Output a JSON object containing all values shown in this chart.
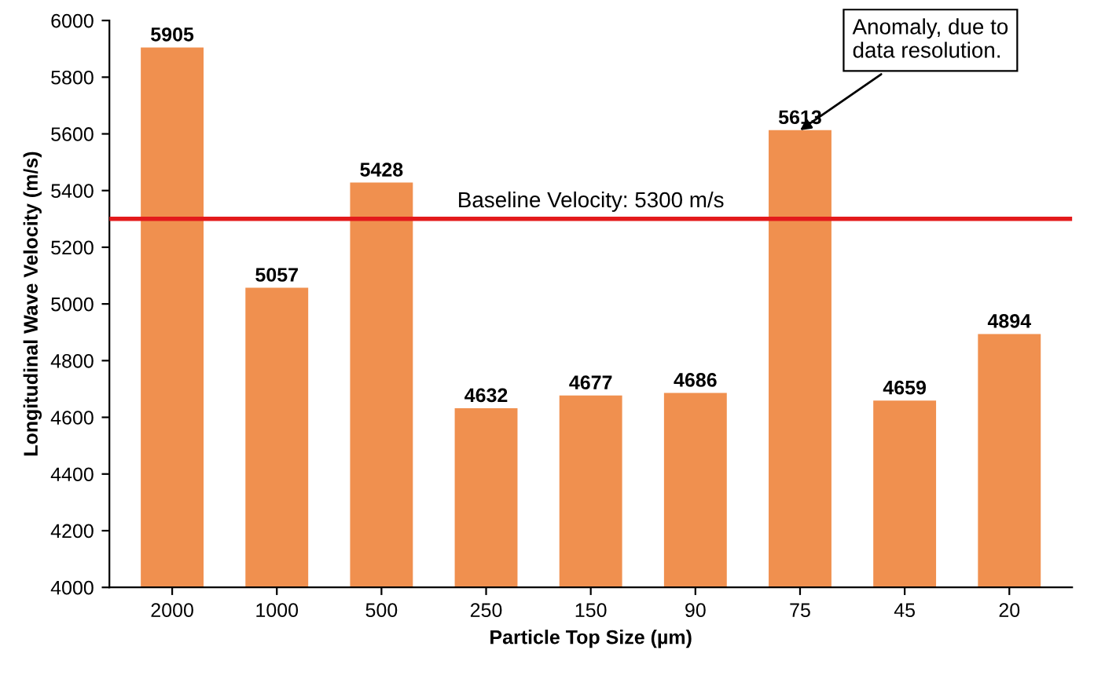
{
  "chart_data": {
    "type": "bar",
    "xlabel": "Particle Top Size (µm)",
    "ylabel": "Longitudinal Wave Velocity (m/s)",
    "categories": [
      "2000",
      "1000",
      "500",
      "250",
      "150",
      "90",
      "75",
      "45",
      "20"
    ],
    "values": [
      5905,
      5057,
      5428,
      4632,
      4677,
      4686,
      5613,
      4659,
      4894
    ],
    "color": "#f0904f",
    "ylim": [
      4000,
      6000
    ],
    "yticks": [
      4000,
      4200,
      4400,
      4600,
      4800,
      5000,
      5200,
      5400,
      5600,
      5800,
      6000
    ],
    "grid": false,
    "data_labels": true,
    "ref_lines": [
      {
        "axis": "y",
        "value": 5300,
        "label": "Baseline Velocity: 5300 m/s",
        "color": "#e31a1c"
      }
    ],
    "annotations": [
      {
        "text": "Anomaly, due to\ndata resolution.",
        "x": "75",
        "y": 5613
      }
    ]
  }
}
